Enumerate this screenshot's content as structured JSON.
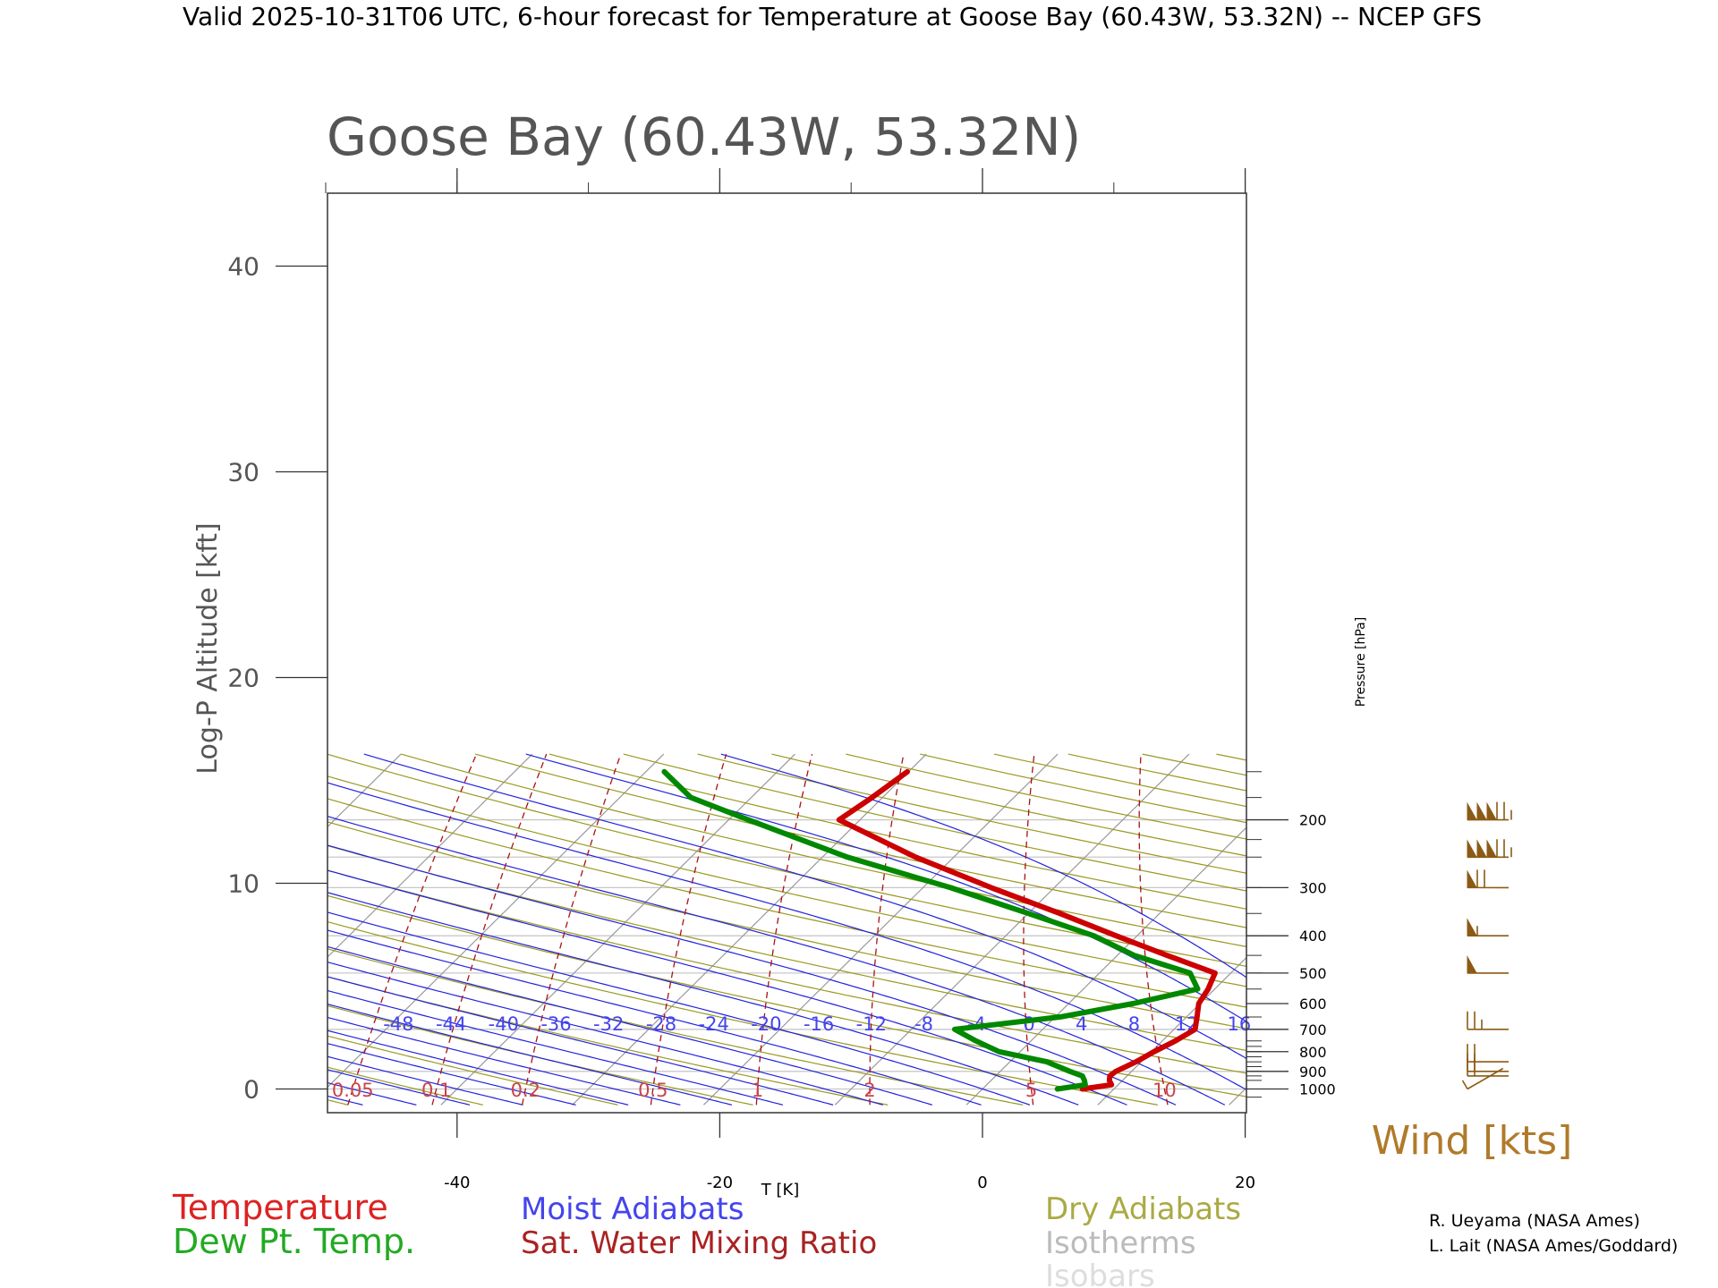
{
  "header": "Valid 2025-10-31T06 UTC, 6-hour forecast for Temperature at Goose Bay (60.43W, 53.32N) -- NCEP GFS",
  "chart_data": {
    "type": "line",
    "chart_kind": "skew-T log-P sounding",
    "title": "Goose Bay (60.43W, 53.32N)",
    "ylabel": "Log-P Altitude [kft]",
    "xlabel": "T [K]",
    "y2label": "Pressure [hPa]",
    "xlim": [
      -50,
      20
    ],
    "ylim": [
      -1.2,
      43.5
    ],
    "x_ticks": [
      -40,
      -20,
      0,
      20
    ],
    "y_ticks": [
      0,
      10,
      20,
      30,
      40
    ],
    "pressure_labeled": [
      1000,
      900,
      800,
      700,
      600,
      500,
      400,
      300,
      200
    ],
    "pressure_minor": [
      1050,
      1000,
      950,
      925,
      900,
      875,
      850,
      825,
      800,
      775,
      750,
      700,
      650,
      600,
      550,
      500,
      450,
      400,
      350,
      300,
      250,
      225,
      200,
      175,
      150
    ],
    "isobars_drawn": [
      1000,
      900,
      700,
      500,
      400,
      300,
      250,
      200
    ],
    "moist_adiabat_labels": [
      "-48",
      "-44",
      "-40",
      "-36",
      "-32",
      "-28",
      "-24",
      "-20",
      "-16",
      "-12",
      "-8",
      "-4",
      "0",
      "4",
      "8",
      "12",
      "16"
    ],
    "mixing_ratio_labels": [
      "0.05",
      "0.1",
      "0.2",
      "0.5",
      "1",
      "2",
      "5",
      "10"
    ],
    "mixing_ratio_values": [
      0.05,
      0.1,
      0.2,
      0.5,
      1,
      2,
      5,
      10,
      20
    ],
    "series": [
      {
        "name": "Temperature",
        "color": "#cc0000",
        "points": [
          {
            "p": 1000,
            "t": 7.6
          },
          {
            "p": 975,
            "t": 9.5
          },
          {
            "p": 950,
            "t": 9.0
          },
          {
            "p": 925,
            "t": 8.7
          },
          {
            "p": 900,
            "t": 8.8
          },
          {
            "p": 850,
            "t": 9.6
          },
          {
            "p": 800,
            "t": 10.2
          },
          {
            "p": 750,
            "t": 11.0
          },
          {
            "p": 700,
            "t": 11.6
          },
          {
            "p": 650,
            "t": 10.8
          },
          {
            "p": 600,
            "t": 9.9
          },
          {
            "p": 550,
            "t": 9.5
          },
          {
            "p": 500,
            "t": 8.8
          },
          {
            "p": 450,
            "t": 3.8
          },
          {
            "p": 400,
            "t": -1.6
          },
          {
            "p": 350,
            "t": -7.6
          },
          {
            "p": 300,
            "t": -14.8
          },
          {
            "p": 250,
            "t": -22.9
          },
          {
            "p": 200,
            "t": -31.6
          },
          {
            "p": 175,
            "t": -30.8
          },
          {
            "p": 150,
            "t": -30.1
          }
        ]
      },
      {
        "name": "Dew Pt. Temp.",
        "color": "#008800",
        "points": [
          {
            "p": 1000,
            "t": 5.7
          },
          {
            "p": 975,
            "t": 7.5
          },
          {
            "p": 950,
            "t": 7.1
          },
          {
            "p": 925,
            "t": 6.6
          },
          {
            "p": 900,
            "t": 5.3
          },
          {
            "p": 850,
            "t": 2.8
          },
          {
            "p": 800,
            "t": -1.6
          },
          {
            "p": 750,
            "t": -4.2
          },
          {
            "p": 700,
            "t": -6.7
          },
          {
            "p": 650,
            "t": 0.4
          },
          {
            "p": 600,
            "t": 4.9
          },
          {
            "p": 550,
            "t": 8.7
          },
          {
            "p": 500,
            "t": 6.9
          },
          {
            "p": 450,
            "t": 1.3
          },
          {
            "p": 400,
            "t": -3.3
          },
          {
            "p": 350,
            "t": -10.0
          },
          {
            "p": 300,
            "t": -17.9
          },
          {
            "p": 250,
            "t": -28.1
          },
          {
            "p": 200,
            "t": -38.5
          },
          {
            "p": 175,
            "t": -44.6
          },
          {
            "p": 150,
            "t": -48.6
          }
        ]
      }
    ],
    "wind": {
      "label": "Wind [kts]",
      "color": "#8b5a14",
      "barbs": [
        {
          "p": 1000,
          "speed_kts": 5,
          "dir_deg": 240
        },
        {
          "p": 925,
          "speed_kts": 20,
          "dir_deg": 270
        },
        {
          "p": 900,
          "speed_kts": 20,
          "dir_deg": 270
        },
        {
          "p": 850,
          "speed_kts": 20,
          "dir_deg": 270
        },
        {
          "p": 700,
          "speed_kts": 25,
          "dir_deg": 270
        },
        {
          "p": 500,
          "speed_kts": 50,
          "dir_deg": 270
        },
        {
          "p": 400,
          "speed_kts": 55,
          "dir_deg": 270
        },
        {
          "p": 300,
          "speed_kts": 70,
          "dir_deg": 270
        },
        {
          "p": 250,
          "speed_kts": 175,
          "dir_deg": 270
        },
        {
          "p": 200,
          "speed_kts": 175,
          "dir_deg": 270
        }
      ]
    },
    "legend": [
      {
        "label": "Temperature",
        "color": "#dd2222"
      },
      {
        "label": "Dew Pt. Temp.",
        "color": "#22aa22"
      },
      {
        "label": "Moist Adiabats",
        "color": "#4444ee"
      },
      {
        "label": "Sat. Water Mixing Ratio",
        "color": "#aa2222"
      },
      {
        "label": "Dry Adiabats",
        "color": "#aaaa44"
      },
      {
        "label": "Isotherms",
        "color": "#bbbbbb"
      },
      {
        "label": "Isobars",
        "color": "#dddddd"
      }
    ],
    "credits": [
      "R. Ueyama (NASA Ames)",
      "L. Lait (NASA Ames/Goddard)"
    ]
  }
}
